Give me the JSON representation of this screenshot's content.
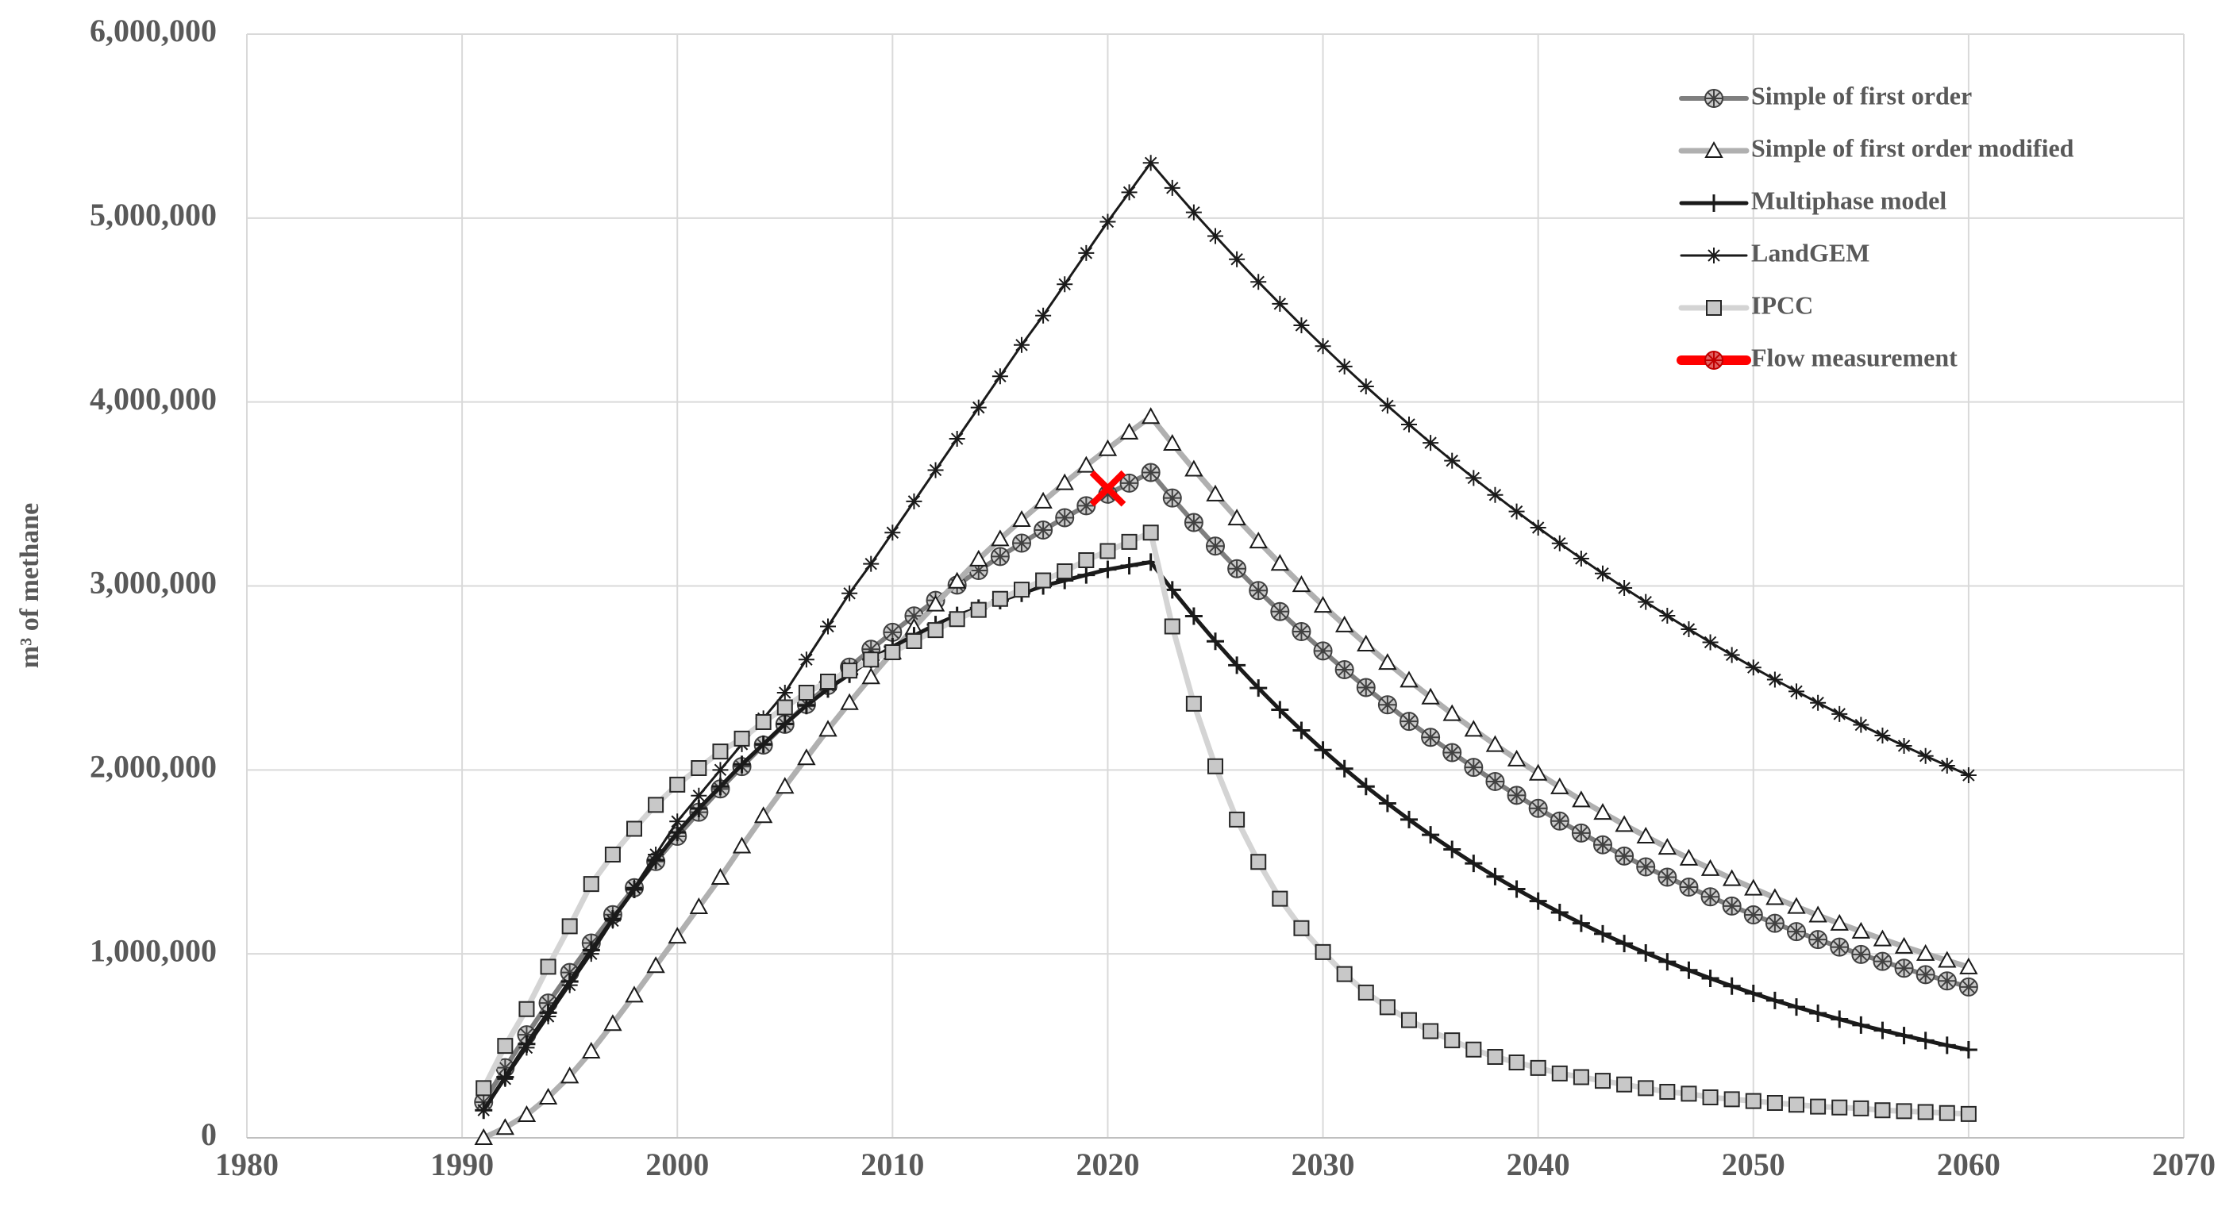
{
  "chart_data": {
    "type": "line",
    "y_label": "m³ of methane",
    "xlim": [
      1980,
      2070
    ],
    "xticks": [
      1980,
      1990,
      2000,
      2010,
      2020,
      2030,
      2040,
      2050,
      2060,
      2070
    ],
    "ylim": [
      0,
      6000000
    ],
    "yticks": [
      0,
      {
        "value": 1000000,
        "label": "1,000,000"
      },
      {
        "value": 2000000,
        "label": "2,000,000"
      },
      {
        "value": 3000000,
        "label": "3,000,000"
      },
      {
        "value": 4000000,
        "label": "4,000,000"
      },
      {
        "value": 5000000,
        "label": "5,000,000"
      },
      {
        "value": 6000000,
        "label": "6,000,000"
      }
    ],
    "grid": true,
    "legend": "top-right",
    "x": [
      1991,
      1992,
      1993,
      1994,
      1995,
      1996,
      1997,
      1998,
      1999,
      2000,
      2001,
      2002,
      2003,
      2004,
      2005,
      2006,
      2007,
      2008,
      2009,
      2010,
      2011,
      2012,
      2013,
      2014,
      2015,
      2016,
      2017,
      2018,
      2019,
      2020,
      2021,
      2022,
      2023,
      2024,
      2025,
      2026,
      2027,
      2028,
      2029,
      2030,
      2031,
      2032,
      2033,
      2034,
      2035,
      2036,
      2037,
      2038,
      2039,
      2040,
      2041,
      2042,
      2043,
      2044,
      2045,
      2046,
      2047,
      2048,
      2049,
      2050,
      2051,
      2052,
      2053,
      2054,
      2055,
      2056,
      2057,
      2058,
      2059,
      2060
    ],
    "series": [
      {
        "name": "Simple of first order",
        "color": "#7f7f7f",
        "marker": "circle",
        "values": [
          194000,
          381000,
          560000,
          733000,
          899000,
          1059000,
          1213000,
          1360000,
          1502000,
          1639000,
          1770000,
          1897000,
          2018000,
          2135000,
          2248000,
          2356000,
          2459000,
          2559000,
          2656000,
          2748000,
          2837000,
          2922000,
          3005000,
          3084000,
          3160000,
          3233000,
          3304000,
          3371000,
          3436000,
          3499000,
          3559000,
          3617000,
          3478000,
          3345000,
          3217000,
          3094000,
          2975000,
          2861000,
          2752000,
          2647000,
          2545000,
          2448000,
          2354000,
          2264000,
          2177000,
          2094000,
          2014000,
          1937000,
          1862000,
          1791000,
          1722000,
          1657000,
          1593000,
          1532000,
          1473000,
          1417000,
          1363000,
          1310000,
          1260000,
          1212000,
          1166000,
          1121000,
          1078000,
          1037000,
          997000,
          959000,
          922000,
          887000,
          853000,
          820000
        ]
      },
      {
        "name": "Simple of first order modified",
        "color": "#b0b0b0",
        "marker": "triangle",
        "values": [
          0,
          55000,
          125000,
          220000,
          335000,
          470000,
          620000,
          775000,
          935000,
          1095000,
          1255000,
          1415000,
          1585000,
          1750000,
          1910000,
          2065000,
          2220000,
          2365000,
          2505000,
          2640000,
          2775000,
          2900000,
          3025000,
          3145000,
          3255000,
          3360000,
          3460000,
          3560000,
          3655000,
          3745000,
          3835000,
          3920000,
          3774000,
          3634000,
          3499000,
          3368000,
          3243000,
          3122000,
          3006000,
          2894000,
          2787000,
          2683000,
          2583000,
          2487000,
          2395000,
          2305000,
          2220000,
          2137000,
          2058000,
          1981000,
          1907000,
          1836000,
          1768000,
          1702000,
          1639000,
          1578000,
          1519000,
          1463000,
          1408000,
          1356000,
          1305000,
          1257000,
          1210000,
          1165000,
          1122000,
          1080000,
          1040000,
          1001000,
          964000,
          928000
        ]
      },
      {
        "name": "Multiphase model",
        "color": "#1a1a1a",
        "marker": "plus",
        "values": [
          150000,
          330000,
          510000,
          680000,
          850000,
          1020000,
          1190000,
          1350000,
          1510000,
          1660000,
          1790000,
          1910000,
          2030000,
          2140000,
          2250000,
          2350000,
          2440000,
          2520000,
          2600000,
          2670000,
          2730000,
          2790000,
          2840000,
          2880000,
          2920000,
          2960000,
          3000000,
          3030000,
          3060000,
          3090000,
          3110000,
          3130000,
          2979000,
          2836000,
          2699000,
          2569000,
          2445000,
          2327000,
          2215000,
          2108000,
          2007000,
          1910000,
          1818000,
          1730000,
          1647000,
          1568000,
          1492000,
          1420000,
          1352000,
          1287000,
          1225000,
          1166000,
          1109000,
          1056000,
          1005000,
          957000,
          911000,
          867000,
          825000,
          785000,
          747000,
          711000,
          677000,
          645000,
          613000,
          584000,
          556000,
          529000,
          503000,
          479000
        ]
      },
      {
        "name": "LandGEM",
        "color": "#1a1a1a",
        "marker": "star",
        "values": [
          150000,
          320000,
          490000,
          660000,
          830000,
          1000000,
          1180000,
          1360000,
          1540000,
          1720000,
          1860000,
          2000000,
          2140000,
          2280000,
          2420000,
          2600000,
          2780000,
          2960000,
          3120000,
          3290000,
          3460000,
          3630000,
          3800000,
          3970000,
          4140000,
          4310000,
          4470000,
          4640000,
          4810000,
          4980000,
          5140000,
          5300000,
          5164000,
          5031000,
          4902000,
          4776000,
          4653000,
          4534000,
          4417000,
          4304000,
          4193000,
          4085000,
          3980000,
          3878000,
          3778000,
          3681000,
          3587000,
          3495000,
          3405000,
          3317000,
          3232000,
          3149000,
          3068000,
          2989000,
          2913000,
          2838000,
          2765000,
          2694000,
          2625000,
          2557000,
          2491000,
          2427000,
          2365000,
          2304000,
          2245000,
          2187000,
          2131000,
          2076000,
          2023000,
          1971000
        ]
      },
      {
        "name": "IPCC",
        "color": "#d4d4d4",
        "marker": "square",
        "values": [
          270000,
          500000,
          700000,
          930000,
          1150000,
          1380000,
          1540000,
          1680000,
          1810000,
          1920000,
          2010000,
          2100000,
          2170000,
          2260000,
          2340000,
          2420000,
          2480000,
          2540000,
          2600000,
          2640000,
          2700000,
          2760000,
          2820000,
          2870000,
          2930000,
          2980000,
          3030000,
          3080000,
          3140000,
          3190000,
          3240000,
          3290000,
          2780000,
          2360000,
          2020000,
          1730000,
          1500000,
          1300000,
          1140000,
          1010000,
          890000,
          790000,
          710000,
          640000,
          580000,
          530000,
          480000,
          440000,
          410000,
          380000,
          350000,
          330000,
          310000,
          290000,
          270000,
          250000,
          240000,
          220000,
          210000,
          200000,
          190000,
          180000,
          170000,
          165000,
          160000,
          150000,
          145000,
          140000,
          135000,
          130000
        ]
      },
      {
        "name": "Flow measurement",
        "color": "#ff0000",
        "marker": "cross",
        "x": [
          2020
        ],
        "values": [
          3530000
        ]
      }
    ]
  }
}
